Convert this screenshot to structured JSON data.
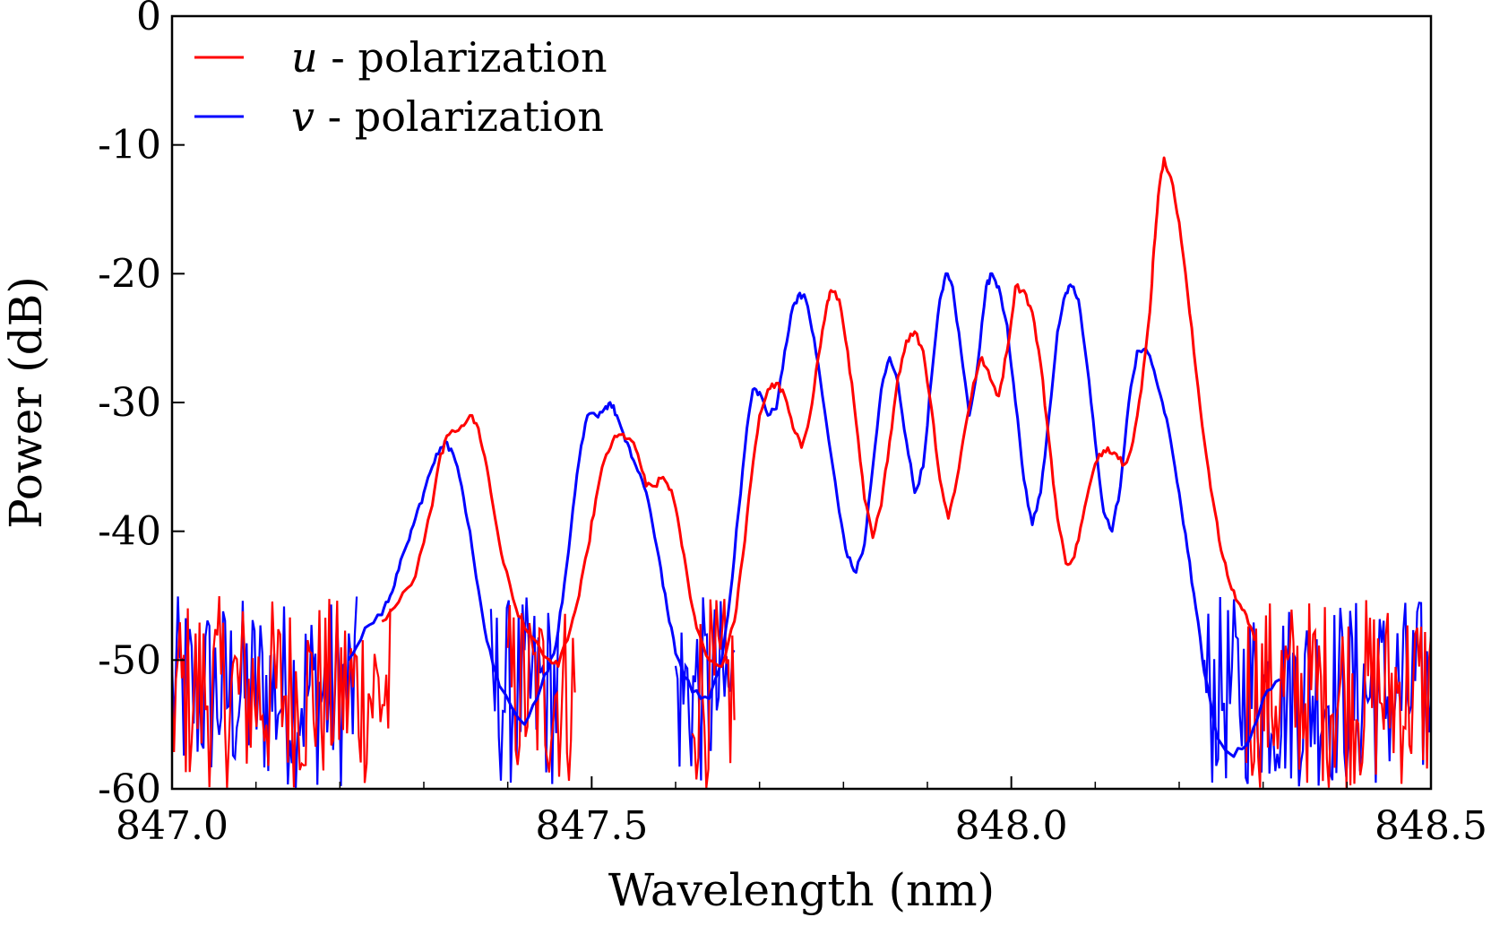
{
  "chart_data": {
    "type": "line",
    "xlabel": "Wavelength (nm)",
    "ylabel": "Power (dB)",
    "xlim": [
      847.0,
      848.5
    ],
    "ylim": [
      -60,
      0
    ],
    "x_ticks": [
      847.0,
      847.5,
      848.0,
      848.5
    ],
    "x_tick_labels": [
      "847.0",
      "847.5",
      "848.0",
      "848.5"
    ],
    "x_minor_step": 0.1,
    "y_ticks": [
      0,
      -10,
      -20,
      -30,
      -40,
      -50,
      -60
    ],
    "y_tick_labels": [
      "0",
      "-10",
      "-20",
      "-30",
      "-40",
      "-50",
      "-60"
    ],
    "grid": false,
    "legend_position": "top-left",
    "noise_floor": [
      -60,
      -45
    ],
    "series": [
      {
        "name": "u - polarization",
        "name_symbol": "u",
        "name_rest": " - polarization",
        "color": "#ff0000",
        "points": [
          [
            847.25,
            -47
          ],
          [
            847.27,
            -45.5
          ],
          [
            847.29,
            -43.5
          ],
          [
            847.31,
            -38
          ],
          [
            847.32,
            -34
          ],
          [
            847.33,
            -32.5
          ],
          [
            847.345,
            -31.8
          ],
          [
            847.355,
            -31
          ],
          [
            847.365,
            -32
          ],
          [
            847.375,
            -35
          ],
          [
            847.385,
            -39
          ],
          [
            847.395,
            -42.5
          ],
          [
            847.41,
            -46
          ],
          [
            847.42,
            -47.5
          ],
          [
            847.45,
            -50
          ],
          [
            847.46,
            -50.5
          ],
          [
            847.475,
            -47.5
          ],
          [
            847.485,
            -45
          ],
          [
            847.495,
            -41.5
          ],
          [
            847.505,
            -37.5
          ],
          [
            847.515,
            -34.5
          ],
          [
            847.525,
            -33
          ],
          [
            847.535,
            -32.5
          ],
          [
            847.545,
            -32.8
          ],
          [
            847.555,
            -34
          ],
          [
            847.565,
            -36.5
          ],
          [
            847.575,
            -36.5
          ],
          [
            847.585,
            -35.8
          ],
          [
            847.595,
            -36.8
          ],
          [
            847.605,
            -40
          ],
          [
            847.615,
            -44
          ],
          [
            847.625,
            -47.5
          ],
          [
            847.64,
            -50
          ],
          [
            847.655,
            -50.5
          ],
          [
            847.67,
            -47
          ],
          [
            847.68,
            -42
          ],
          [
            847.69,
            -36
          ],
          [
            847.7,
            -31
          ],
          [
            847.71,
            -29
          ],
          [
            847.72,
            -28.5
          ],
          [
            847.73,
            -29.5
          ],
          [
            847.74,
            -32
          ],
          [
            847.75,
            -33.5
          ],
          [
            847.76,
            -31
          ],
          [
            847.77,
            -26.5
          ],
          [
            847.78,
            -22.5
          ],
          [
            847.785,
            -21.3
          ],
          [
            847.795,
            -22
          ],
          [
            847.805,
            -26
          ],
          [
            847.815,
            -31.5
          ],
          [
            847.825,
            -37.5
          ],
          [
            847.835,
            -40.5
          ],
          [
            847.845,
            -38
          ],
          [
            847.855,
            -33
          ],
          [
            847.865,
            -28
          ],
          [
            847.875,
            -25.2
          ],
          [
            847.885,
            -24.5
          ],
          [
            847.895,
            -26
          ],
          [
            847.905,
            -30.5
          ],
          [
            847.915,
            -36
          ],
          [
            847.925,
            -39
          ],
          [
            847.935,
            -36
          ],
          [
            847.945,
            -32
          ],
          [
            847.955,
            -28.5
          ],
          [
            847.965,
            -26.5
          ],
          [
            847.975,
            -28.2
          ],
          [
            847.985,
            -29.5
          ],
          [
            847.995,
            -26
          ],
          [
            848.005,
            -21
          ],
          [
            848.015,
            -21.3
          ],
          [
            848.025,
            -23
          ],
          [
            848.035,
            -27
          ],
          [
            848.045,
            -33
          ],
          [
            848.055,
            -39
          ],
          [
            848.065,
            -42.5
          ],
          [
            848.075,
            -42
          ],
          [
            848.085,
            -39
          ],
          [
            848.095,
            -36
          ],
          [
            848.105,
            -34
          ],
          [
            848.115,
            -33.5
          ],
          [
            848.125,
            -34
          ],
          [
            848.135,
            -34.8
          ],
          [
            848.145,
            -33
          ],
          [
            848.155,
            -29
          ],
          [
            848.165,
            -23
          ],
          [
            848.17,
            -18
          ],
          [
            848.175,
            -14
          ],
          [
            848.182,
            -11
          ],
          [
            848.19,
            -12.5
          ],
          [
            848.2,
            -16
          ],
          [
            848.21,
            -21.5
          ],
          [
            848.22,
            -27.5
          ],
          [
            848.23,
            -33
          ],
          [
            848.24,
            -37.5
          ],
          [
            848.25,
            -41.5
          ],
          [
            848.26,
            -44
          ],
          [
            848.27,
            -45.5
          ],
          [
            848.28,
            -46.5
          ],
          [
            848.29,
            -48.5
          ]
        ]
      },
      {
        "name": "v - polarization",
        "name_symbol": "v",
        "name_rest": " - polarization",
        "color": "#0000ff",
        "points": [
          [
            847.21,
            -50
          ],
          [
            847.23,
            -47.5
          ],
          [
            847.25,
            -46.5
          ],
          [
            847.26,
            -45
          ],
          [
            847.27,
            -43
          ],
          [
            847.28,
            -41
          ],
          [
            847.29,
            -39
          ],
          [
            847.3,
            -37
          ],
          [
            847.31,
            -35
          ],
          [
            847.32,
            -33.5
          ],
          [
            847.325,
            -33
          ],
          [
            847.335,
            -34
          ],
          [
            847.345,
            -36.5
          ],
          [
            847.355,
            -40
          ],
          [
            847.365,
            -44.5
          ],
          [
            847.375,
            -48.5
          ],
          [
            847.39,
            -52
          ],
          [
            847.42,
            -55
          ],
          [
            847.44,
            -52
          ],
          [
            847.455,
            -49.5
          ],
          [
            847.465,
            -45.5
          ],
          [
            847.475,
            -40
          ],
          [
            847.485,
            -34.5
          ],
          [
            847.495,
            -31
          ],
          [
            847.505,
            -31
          ],
          [
            847.515,
            -30.5
          ],
          [
            847.522,
            -30
          ],
          [
            847.53,
            -31
          ],
          [
            847.54,
            -33
          ],
          [
            847.55,
            -34.5
          ],
          [
            847.56,
            -36
          ],
          [
            847.57,
            -38.5
          ],
          [
            847.58,
            -42
          ],
          [
            847.59,
            -46
          ],
          [
            847.6,
            -49.5
          ],
          [
            847.62,
            -52.5
          ],
          [
            847.64,
            -53
          ],
          [
            847.655,
            -50
          ],
          [
            847.665,
            -45
          ],
          [
            847.675,
            -38.5
          ],
          [
            847.685,
            -32
          ],
          [
            847.692,
            -29
          ],
          [
            847.7,
            -29.2
          ],
          [
            847.71,
            -31
          ],
          [
            847.72,
            -30.5
          ],
          [
            847.73,
            -26
          ],
          [
            847.74,
            -22.5
          ],
          [
            847.748,
            -21.5
          ],
          [
            847.755,
            -22
          ],
          [
            847.765,
            -25
          ],
          [
            847.775,
            -29.5
          ],
          [
            847.785,
            -34
          ],
          [
            847.795,
            -38.5
          ],
          [
            847.805,
            -42
          ],
          [
            847.815,
            -43.2
          ],
          [
            847.825,
            -41
          ],
          [
            847.835,
            -35
          ],
          [
            847.845,
            -29
          ],
          [
            847.855,
            -26.5
          ],
          [
            847.865,
            -28.5
          ],
          [
            847.875,
            -33
          ],
          [
            847.885,
            -37
          ],
          [
            847.895,
            -35
          ],
          [
            847.905,
            -28
          ],
          [
            847.915,
            -22
          ],
          [
            847.922,
            -20
          ],
          [
            847.93,
            -21
          ],
          [
            847.94,
            -26
          ],
          [
            847.95,
            -31
          ],
          [
            847.96,
            -27
          ],
          [
            847.97,
            -21
          ],
          [
            847.977,
            -20
          ],
          [
            847.985,
            -21
          ],
          [
            847.995,
            -24
          ],
          [
            848.005,
            -30
          ],
          [
            848.015,
            -36
          ],
          [
            848.025,
            -39.5
          ],
          [
            848.035,
            -37
          ],
          [
            848.045,
            -31
          ],
          [
            848.055,
            -24.5
          ],
          [
            848.065,
            -21.5
          ],
          [
            848.072,
            -21
          ],
          [
            848.08,
            -22
          ],
          [
            848.09,
            -27
          ],
          [
            848.1,
            -33
          ],
          [
            848.11,
            -38.5
          ],
          [
            848.12,
            -40
          ],
          [
            848.13,
            -36.5
          ],
          [
            848.14,
            -30
          ],
          [
            848.15,
            -26
          ],
          [
            848.16,
            -25.8
          ],
          [
            848.17,
            -27.5
          ],
          [
            848.18,
            -30
          ],
          [
            848.19,
            -33
          ],
          [
            848.2,
            -37
          ],
          [
            848.21,
            -41.5
          ],
          [
            848.22,
            -46
          ],
          [
            848.23,
            -51
          ],
          [
            848.245,
            -56
          ],
          [
            848.265,
            -57.5
          ],
          [
            848.285,
            -56
          ],
          [
            848.3,
            -53
          ],
          [
            848.32,
            -51.5
          ]
        ]
      }
    ]
  }
}
